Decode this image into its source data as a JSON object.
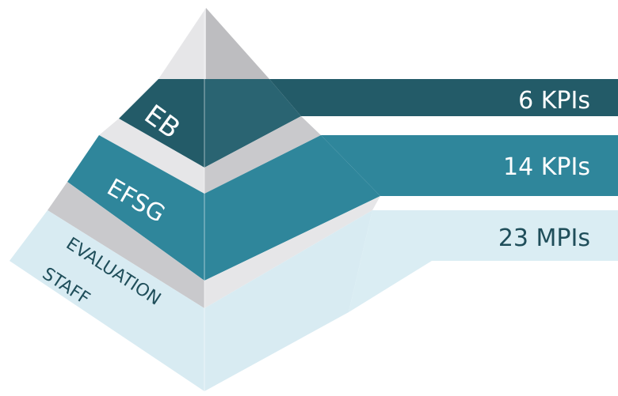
{
  "tiers": [
    {
      "label": "EB",
      "value_text": "6 KPIs"
    },
    {
      "label": "EFSG",
      "value_text": "14 KPIs"
    },
    {
      "label_lines": [
        "EVALUATION",
        "STAFF"
      ],
      "value_text": "23 MPIs"
    }
  ],
  "colors": {
    "tier1_band": "#235b68",
    "tier1_face_right": "#2a6472",
    "tier2_band": "#2f869b",
    "tier3_band": "#daedf3",
    "tier3_face": "#d8ebf2",
    "gray_light": "#e6e6e8",
    "gray_mid": "#c9c9cc",
    "gray_dark": "#bdbdc0"
  }
}
